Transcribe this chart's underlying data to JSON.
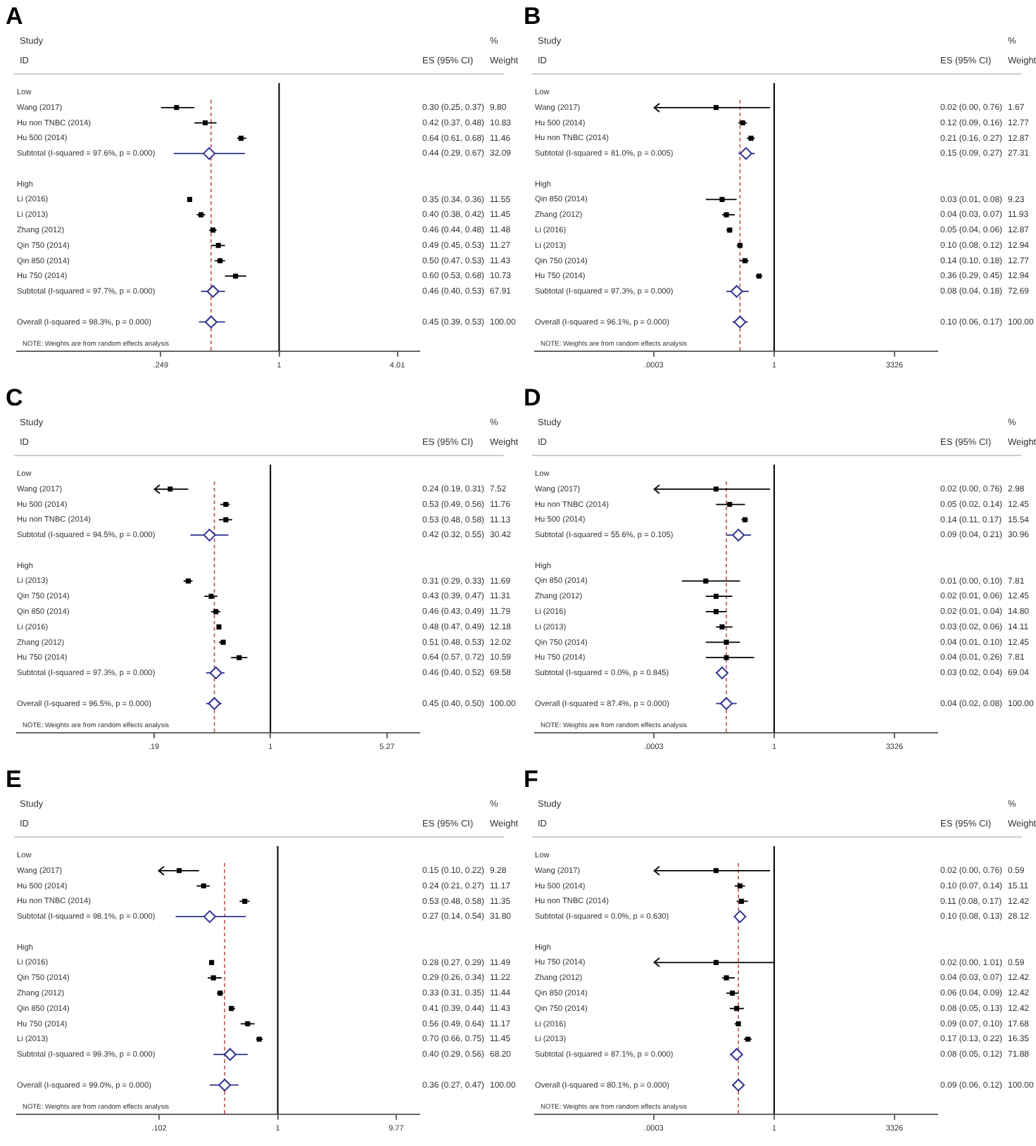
{
  "chart_data": [
    {
      "type": "scatter",
      "title": "A",
      "orientation": "horizontal",
      "log": "x",
      "xlim": [
        0.046,
        5.2
      ],
      "xticks": [
        {
          "value": 0.249,
          "label": ".249"
        },
        1,
        4.01
      ],
      "categories": [
        "Low",
        "Wang (2017)",
        "Hu non TNBC (2014)",
        "Hu 500 (2014)",
        "Subtotal (I-squared = 97.6%, p = 0.000)",
        null,
        "High",
        "Li (2016)",
        "Li (2013)",
        "Zhang (2012)",
        "Qin 750 (2014)",
        "Qin 850 (2014)",
        "Hu 750 (2014)",
        "Subtotal (I-squared = 97.7%, p = 0.000)",
        null,
        "Overall (I-squared = 98.3%, p = 0.000)"
      ],
      "series": [
        {
          "marker": "square",
          "color": "#000000",
          "values": [
            null,
            0.3,
            0.42,
            0.64,
            null,
            null,
            null,
            0.35,
            0.4,
            0.46,
            0.49,
            0.5,
            0.6,
            null,
            null,
            null
          ],
          "errors": [
            null,
            [
              0.25,
              0.37
            ],
            [
              0.37,
              0.48
            ],
            [
              0.61,
              0.68
            ],
            null,
            null,
            null,
            [
              0.34,
              0.36
            ],
            [
              0.38,
              0.42
            ],
            [
              0.44,
              0.48
            ],
            [
              0.45,
              0.53
            ],
            [
              0.47,
              0.53
            ],
            [
              0.53,
              0.68
            ],
            null,
            null,
            null
          ],
          "value_labels": [
            null,
            "0.30 (0.25, 0.37)",
            "0.42 (0.37, 0.48)",
            "0.64 (0.61, 0.68)",
            null,
            null,
            null,
            "0.35 (0.34, 0.36)",
            "0.40 (0.38, 0.42)",
            "0.46 (0.44, 0.48)",
            "0.49 (0.45, 0.53)",
            "0.50 (0.47, 0.53)",
            "0.60 (0.53, 0.68)",
            null,
            null,
            null
          ]
        },
        {
          "marker": "diamond",
          "color": "#2e3192",
          "values": [
            null,
            null,
            null,
            null,
            0.44,
            null,
            null,
            null,
            null,
            null,
            null,
            null,
            null,
            0.46,
            null,
            0.45
          ],
          "errors": [
            null,
            null,
            null,
            null,
            [
              0.29,
              0.67
            ],
            null,
            null,
            null,
            null,
            null,
            null,
            null,
            null,
            [
              0.4,
              0.53
            ],
            null,
            [
              0.39,
              0.53
            ]
          ]
        }
      ],
      "ref_lines": [
        {
          "axis": "x",
          "value": 1,
          "color": "#000000"
        },
        {
          "axis": "x",
          "value": 0.45,
          "color": "#c0504d",
          "line_style": "dashed"
        }
      ],
      "annotations": [
        "Study",
        "ID",
        "ES (95% CI)",
        "%",
        "Weight",
        "NOTE: Weights are from random effects analysis",
        "9.80",
        "10.83",
        "11.46",
        "32.09",
        "11.55",
        "11.45",
        "11.48",
        "11.27",
        "11.43",
        "10.73",
        "67.91",
        "100.00",
        "0.44 (0.29, 0.67)",
        "0.46 (0.40, 0.53)",
        "0.45 (0.39, 0.53)"
      ]
    },
    {
      "type": "scatter",
      "title": "B",
      "orientation": "horizontal",
      "log": "x",
      "xlim": [
        1e-07,
        60000
      ],
      "xticks": [
        {
          "value": 0.0003,
          "label": ".0003"
        },
        1,
        3326
      ],
      "categories": [
        "Low",
        "Wang (2017)",
        "Hu 500 (2014)",
        "Hu non TNBC (2014)",
        "Subtotal (I-squared = 81.0%, p = 0.005)",
        null,
        "High",
        "Qin 850 (2014)",
        "Zhang (2012)",
        "Li (2016)",
        "Li (2013)",
        "Qin 750 (2014)",
        "Hu 750 (2014)",
        "Subtotal (I-squared = 97.3%, p = 0.000)",
        null,
        "Overall (I-squared = 96.1%, p = 0.000)"
      ],
      "series": [
        {
          "marker": "square",
          "color": "#000000",
          "values": [
            null,
            0.02,
            0.12,
            0.21,
            null,
            null,
            null,
            0.03,
            0.04,
            0.05,
            0.1,
            0.14,
            0.36,
            null,
            null,
            null
          ],
          "errors": [
            null,
            [
              0.0003,
              0.76
            ],
            [
              0.09,
              0.16
            ],
            [
              0.16,
              0.27
            ],
            null,
            null,
            null,
            [
              0.01,
              0.08
            ],
            [
              0.03,
              0.07
            ],
            [
              0.04,
              0.06
            ],
            [
              0.08,
              0.12
            ],
            [
              0.1,
              0.18
            ],
            [
              0.29,
              0.45
            ],
            null,
            null,
            null
          ],
          "value_labels": [
            null,
            "0.02 (0.00, 0.76)",
            "0.12 (0.09, 0.16)",
            "0.21 (0.16, 0.27)",
            null,
            null,
            null,
            "0.03 (0.01, 0.08)",
            "0.04 (0.03, 0.07)",
            "0.05 (0.04, 0.06)",
            "0.10 (0.08, 0.12)",
            "0.14 (0.10, 0.18)",
            "0.36 (0.29, 0.45)",
            null,
            null,
            null
          ]
        },
        {
          "marker": "diamond",
          "color": "#2e3192",
          "values": [
            null,
            null,
            null,
            null,
            0.15,
            null,
            null,
            null,
            null,
            null,
            null,
            null,
            null,
            0.08,
            null,
            0.1
          ],
          "errors": [
            null,
            null,
            null,
            null,
            [
              0.09,
              0.27
            ],
            null,
            null,
            null,
            null,
            null,
            null,
            null,
            null,
            [
              0.04,
              0.18
            ],
            null,
            [
              0.06,
              0.17
            ]
          ]
        }
      ],
      "ref_lines": [
        {
          "axis": "x",
          "value": 1,
          "color": "#000000"
        },
        {
          "axis": "x",
          "value": 0.1,
          "color": "#c0504d",
          "line_style": "dashed"
        }
      ],
      "annotations": [
        "Study",
        "ID",
        "ES (95% CI)",
        "%",
        "Weight",
        "NOTE: Weights are from random effects analysis",
        "1.67",
        "12.77",
        "12.87",
        "27.31",
        "9.23",
        "11.93",
        "12.87",
        "12.94",
        "12.77",
        "12.94",
        "72.69",
        "100.00",
        "0.15 (0.09, 0.27)",
        "0.08 (0.04, 0.18)",
        "0.10 (0.06, 0.17)"
      ]
    },
    {
      "type": "scatter",
      "title": "C",
      "orientation": "horizontal",
      "log": "x",
      "xlim": [
        0.027,
        8.36
      ],
      "xticks": [
        {
          "value": 0.19,
          "label": ".19"
        },
        1,
        5.27
      ],
      "categories": [
        "Low",
        "Wang (2017)",
        "Hu 500 (2014)",
        "Hu non TNBC (2014)",
        "Subtotal (I-squared = 94.5%, p = 0.000)",
        null,
        "High",
        "Li (2013)",
        "Qin 750 (2014)",
        "Qin 850 (2014)",
        "Li (2016)",
        "Zhang (2012)",
        "Hu 750 (2014)",
        "Subtotal (I-squared = 97.3%, p = 0.000)",
        null,
        "Overall (I-squared = 96.5%, p = 0.000)"
      ],
      "series": [
        {
          "marker": "square",
          "color": "#000000",
          "values": [
            null,
            0.24,
            0.53,
            0.53,
            null,
            null,
            null,
            0.31,
            0.43,
            0.46,
            0.48,
            0.51,
            0.64,
            null,
            null,
            null
          ],
          "errors": [
            null,
            [
              0.19,
              0.31
            ],
            [
              0.49,
              0.56
            ],
            [
              0.48,
              0.58
            ],
            null,
            null,
            null,
            [
              0.29,
              0.33
            ],
            [
              0.39,
              0.47
            ],
            [
              0.43,
              0.49
            ],
            [
              0.47,
              0.49
            ],
            [
              0.48,
              0.53
            ],
            [
              0.57,
              0.72
            ],
            null,
            null,
            null
          ],
          "value_labels": [
            null,
            "0.24 (0.19, 0.31)",
            "0.53 (0.49, 0.56)",
            "0.53 (0.48, 0.58)",
            null,
            null,
            null,
            "0.31 (0.29, 0.33)",
            "0.43 (0.39, 0.47)",
            "0.46 (0.43, 0.49)",
            "0.48 (0.47, 0.49)",
            "0.51 (0.48, 0.53)",
            "0.64 (0.57, 0.72)",
            null,
            null,
            null
          ]
        },
        {
          "marker": "diamond",
          "color": "#2e3192",
          "values": [
            null,
            null,
            null,
            null,
            0.42,
            null,
            null,
            null,
            null,
            null,
            null,
            null,
            null,
            0.46,
            null,
            0.45
          ],
          "errors": [
            null,
            null,
            null,
            null,
            [
              0.32,
              0.55
            ],
            null,
            null,
            null,
            null,
            null,
            null,
            null,
            null,
            [
              0.4,
              0.52
            ],
            null,
            [
              0.4,
              0.5
            ]
          ]
        }
      ],
      "ref_lines": [
        {
          "axis": "x",
          "value": 1,
          "color": "#000000"
        },
        {
          "axis": "x",
          "value": 0.45,
          "color": "#c0504d",
          "line_style": "dashed"
        }
      ],
      "annotations": [
        "Study",
        "ID",
        "ES (95% CI)",
        "%",
        "Weight",
        "NOTE: Weights are from random effects analysis",
        "7.52",
        "11.76",
        "11.13",
        "30.42",
        "11.69",
        "11.31",
        "11.79",
        "12.18",
        "12.02",
        "10.59",
        "69.58",
        "100.00",
        "0.42 (0.32, 0.55)",
        "0.46 (0.40, 0.52)",
        "0.45 (0.40, 0.50)"
      ]
    },
    {
      "type": "scatter",
      "title": "D",
      "orientation": "horizontal",
      "log": "x",
      "xlim": [
        1e-07,
        60000
      ],
      "xticks": [
        {
          "value": 0.0003,
          "label": ".0003"
        },
        1,
        3326
      ],
      "categories": [
        "Low",
        "Wang (2017)",
        "Hu non TNBC (2014)",
        "Hu 500 (2014)",
        "Subtotal (I-squared = 55.6%, p = 0.105)",
        null,
        "High",
        "Qin 850 (2014)",
        "Zhang (2012)",
        "Li (2016)",
        "Li (2013)",
        "Qin 750 (2014)",
        "Hu 750 (2014)",
        "Subtotal (I-squared = 0.0%, p = 0.845)",
        null,
        "Overall (I-squared = 87.4%, p = 0.000)"
      ],
      "series": [
        {
          "marker": "square",
          "color": "#000000",
          "values": [
            null,
            0.02,
            0.05,
            0.14,
            null,
            null,
            null,
            0.01,
            0.02,
            0.02,
            0.03,
            0.04,
            0.04,
            null,
            null,
            null
          ],
          "errors": [
            null,
            [
              0.0003,
              0.76
            ],
            [
              0.02,
              0.14
            ],
            [
              0.11,
              0.17
            ],
            null,
            null,
            null,
            [
              0.002,
              0.1
            ],
            [
              0.01,
              0.06
            ],
            [
              0.01,
              0.04
            ],
            [
              0.02,
              0.06
            ],
            [
              0.01,
              0.1
            ],
            [
              0.01,
              0.26
            ],
            null,
            null,
            null
          ],
          "value_labels": [
            null,
            "0.02 (0.00, 0.76)",
            "0.05 (0.02, 0.14)",
            "0.14 (0.11, 0.17)",
            null,
            null,
            null,
            "0.01 (0.00, 0.10)",
            "0.02 (0.01, 0.06)",
            "0.02 (0.01, 0.04)",
            "0.03 (0.02, 0.06)",
            "0.04 (0.01, 0.10)",
            "0.04 (0.01, 0.26)",
            null,
            null,
            null
          ]
        },
        {
          "marker": "diamond",
          "color": "#2e3192",
          "values": [
            null,
            null,
            null,
            null,
            0.09,
            null,
            null,
            null,
            null,
            null,
            null,
            null,
            null,
            0.03,
            null,
            0.04
          ],
          "errors": [
            null,
            null,
            null,
            null,
            [
              0.04,
              0.21
            ],
            null,
            null,
            null,
            null,
            null,
            null,
            null,
            null,
            [
              0.02,
              0.04
            ],
            null,
            [
              0.02,
              0.08
            ]
          ]
        }
      ],
      "ref_lines": [
        {
          "axis": "x",
          "value": 1,
          "color": "#000000"
        },
        {
          "axis": "x",
          "value": 0.04,
          "color": "#c0504d",
          "line_style": "dashed"
        }
      ],
      "annotations": [
        "Study",
        "ID",
        "ES (95% CI)",
        "%",
        "Weight",
        "NOTE: Weights are from random effects analysis",
        "2.98",
        "12.45",
        "15.54",
        "30.96",
        "7.81",
        "12.45",
        "14.80",
        "14.11",
        "12.45",
        "7.81",
        "69.04",
        "100.00",
        "0.09 (0.04, 0.21)",
        "0.03 (0.02, 0.04)",
        "0.04 (0.02, 0.08)"
      ]
    },
    {
      "type": "scatter",
      "title": "E",
      "orientation": "horizontal",
      "log": "x",
      "xlim": [
        0.0066,
        15.3
      ],
      "xticks": [
        {
          "value": 0.102,
          "label": ".102"
        },
        1,
        9.77
      ],
      "categories": [
        "Low",
        "Wang (2017)",
        "Hu 500 (2014)",
        "Hu non TNBC (2014)",
        "Subtotal (I-squared = 98.1%, p = 0.000)",
        null,
        "High",
        "Li (2016)",
        "Qin 750 (2014)",
        "Zhang (2012)",
        "Qin 850 (2014)",
        "Hu 750 (2014)",
        "Li (2013)",
        "Subtotal (I-squared = 99.3%, p = 0.000)",
        null,
        "Overall (I-squared = 99.0%, p = 0.000)"
      ],
      "series": [
        {
          "marker": "square",
          "color": "#000000",
          "values": [
            null,
            0.15,
            0.24,
            0.53,
            null,
            null,
            null,
            0.28,
            0.29,
            0.33,
            0.41,
            0.56,
            0.7,
            null,
            null,
            null
          ],
          "errors": [
            null,
            [
              0.1,
              0.22
            ],
            [
              0.21,
              0.27
            ],
            [
              0.48,
              0.58
            ],
            null,
            null,
            null,
            [
              0.27,
              0.29
            ],
            [
              0.26,
              0.34
            ],
            [
              0.31,
              0.35
            ],
            [
              0.39,
              0.44
            ],
            [
              0.49,
              0.64
            ],
            [
              0.66,
              0.75
            ],
            null,
            null,
            null
          ],
          "value_labels": [
            null,
            "0.15 (0.10, 0.22)",
            "0.24 (0.21, 0.27)",
            "0.53 (0.48, 0.58)",
            null,
            null,
            null,
            "0.28 (0.27, 0.29)",
            "0.29 (0.26, 0.34)",
            "0.33 (0.31, 0.35)",
            "0.41 (0.39, 0.44)",
            "0.56 (0.49, 0.64)",
            "0.70 (0.66, 0.75)",
            null,
            null,
            null
          ]
        },
        {
          "marker": "diamond",
          "color": "#2e3192",
          "values": [
            null,
            null,
            null,
            null,
            0.27,
            null,
            null,
            null,
            null,
            null,
            null,
            null,
            null,
            0.4,
            null,
            0.36
          ],
          "errors": [
            null,
            null,
            null,
            null,
            [
              0.14,
              0.54
            ],
            null,
            null,
            null,
            null,
            null,
            null,
            null,
            null,
            [
              0.29,
              0.56
            ],
            null,
            [
              0.27,
              0.47
            ]
          ]
        }
      ],
      "ref_lines": [
        {
          "axis": "x",
          "value": 1,
          "color": "#000000"
        },
        {
          "axis": "x",
          "value": 0.36,
          "color": "#c0504d",
          "line_style": "dashed"
        }
      ],
      "annotations": [
        "Study",
        "ID",
        "ES (95% CI)",
        "%",
        "Weight",
        "NOTE: Weights are from random effects analysis",
        "9.28",
        "11.17",
        "11.35",
        "31.80",
        "11.49",
        "11.22",
        "11.44",
        "11.43",
        "11.17",
        "11.45",
        "68.20",
        "100.00",
        "0.27 (0.14, 0.54)",
        "0.40 (0.29, 0.56)",
        "0.36 (0.27, 0.47)"
      ]
    },
    {
      "type": "scatter",
      "title": "F",
      "orientation": "horizontal",
      "log": "x",
      "xlim": [
        1e-07,
        60000
      ],
      "xticks": [
        {
          "value": 0.0003,
          "label": ".0003"
        },
        1,
        3326
      ],
      "categories": [
        "Low",
        "Wang (2017)",
        "Hu 500 (2014)",
        "Hu non TNBC (2014)",
        "Subtotal (I-squared = 0.0%, p = 0.630)",
        null,
        "High",
        "Hu 750 (2014)",
        "Zhang (2012)",
        "Qin 850 (2014)",
        "Qin 750 (2014)",
        "Li (2016)",
        "Li (2013)",
        "Subtotal (I-squared = 87.1%, p = 0.000)",
        null,
        "Overall (I-squared = 80.1%, p = 0.000)"
      ],
      "series": [
        {
          "marker": "square",
          "color": "#000000",
          "values": [
            null,
            0.02,
            0.1,
            0.11,
            null,
            null,
            null,
            0.02,
            0.04,
            0.06,
            0.08,
            0.09,
            0.17,
            null,
            null,
            null
          ],
          "errors": [
            null,
            [
              0.0003,
              0.76
            ],
            [
              0.07,
              0.14
            ],
            [
              0.08,
              0.17
            ],
            null,
            null,
            null,
            [
              0.0003,
              1.01
            ],
            [
              0.03,
              0.07
            ],
            [
              0.04,
              0.09
            ],
            [
              0.05,
              0.13
            ],
            [
              0.07,
              0.1
            ],
            [
              0.13,
              0.22
            ],
            null,
            null,
            null
          ],
          "value_labels": [
            null,
            "0.02 (0.00, 0.76)",
            "0.10 (0.07, 0.14)",
            "0.11 (0.08, 0.17)",
            null,
            null,
            null,
            "0.02 (0.00, 1.01)",
            "0.04 (0.03, 0.07)",
            "0.06 (0.04, 0.09)",
            "0.08 (0.05, 0.13)",
            "0.09 (0.07, 0.10)",
            "0.17 (0.13, 0.22)",
            null,
            null,
            null
          ]
        },
        {
          "marker": "diamond",
          "color": "#2e3192",
          "values": [
            null,
            null,
            null,
            null,
            0.1,
            null,
            null,
            null,
            null,
            null,
            null,
            null,
            null,
            0.08,
            null,
            0.09
          ],
          "errors": [
            null,
            null,
            null,
            null,
            [
              0.08,
              0.13
            ],
            null,
            null,
            null,
            null,
            null,
            null,
            null,
            null,
            [
              0.05,
              0.12
            ],
            null,
            [
              0.06,
              0.12
            ]
          ]
        }
      ],
      "ref_lines": [
        {
          "axis": "x",
          "value": 1,
          "color": "#000000"
        },
        {
          "axis": "x",
          "value": 0.09,
          "color": "#c0504d",
          "line_style": "dashed"
        }
      ],
      "annotations": [
        "Study",
        "ID",
        "ES (95% CI)",
        "%",
        "Weight",
        "NOTE: Weights are from random effects analysis",
        "0.59",
        "15.11",
        "12.42",
        "28.12",
        "0.59",
        "12.42",
        "12.42",
        "12.42",
        "17.68",
        "16.35",
        "71.88",
        "100.00",
        "0.10 (0.08, 0.13)",
        "0.08 (0.05, 0.12)",
        "0.09 (0.06, 0.12)"
      ]
    }
  ]
}
